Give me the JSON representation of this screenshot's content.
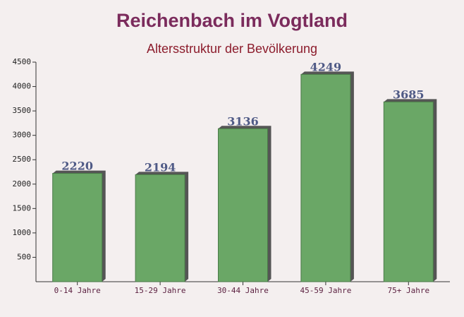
{
  "chart_data": {
    "type": "bar",
    "title": "Reichenbach im Vogtland",
    "subtitle": "Altersstruktur der Bevölkerung",
    "categories": [
      "0-14 Jahre",
      "15-29 Jahre",
      "30-44 Jahre",
      "45-59 Jahre",
      "75+ Jahre"
    ],
    "values": [
      2220,
      2194,
      3136,
      4249,
      3685
    ],
    "color": "#6aa766",
    "ylim": [
      0,
      4500
    ],
    "yticks": [
      500,
      1000,
      1500,
      2000,
      2500,
      3000,
      3500,
      4000,
      4500
    ]
  }
}
